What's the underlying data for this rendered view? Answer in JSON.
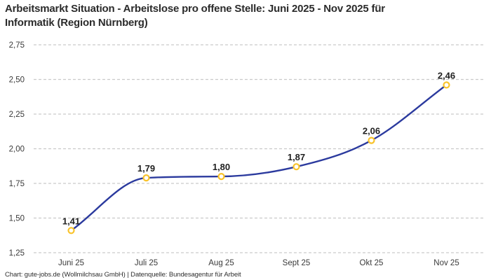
{
  "header": {
    "title_lines": [
      "Arbeitsmarkt Situation - Arbeitslose pro offene Stelle: Juni 2025 - Nov 2025 für",
      "Informatik (Region Nürnberg)"
    ]
  },
  "chart_data": {
    "type": "line",
    "title": "Arbeitsmarkt Situation - Arbeitslose pro offene Stelle: Juni 2025 - Nov 2025 für Informatik (Region Nürnberg)",
    "categories": [
      "Juni 25",
      "Juli 25",
      "Aug 25",
      "Sept 25",
      "Okt 25",
      "Nov 25"
    ],
    "values": [
      1.41,
      1.79,
      1.8,
      1.87,
      2.06,
      2.46
    ],
    "point_labels": [
      "1,41",
      "1,79",
      "1,80",
      "1,87",
      "2,06",
      "2,46"
    ],
    "xlabel": "",
    "ylabel": "",
    "ylim": [
      1.25,
      2.75
    ],
    "y_ticks": [
      2.75,
      2.5,
      2.25,
      2.0,
      1.75,
      1.5,
      1.25
    ],
    "y_tick_labels": [
      "2,75",
      "2,50",
      "2,25",
      "2,00",
      "1,75",
      "1,50",
      "1,25"
    ],
    "grid": "horizontal-dashed",
    "legend": "none",
    "colors": {
      "line": "#2b3a9e",
      "marker_ring": "#f9c32b",
      "marker_fill": "#ffffff",
      "grid": "#c9c9c9",
      "tick_text": "#3a3a3a",
      "point_label_text": "#1f1f1f"
    }
  },
  "footer": {
    "text": "Chart: gute-jobs.de (Wollmilchsau GmbH) | Datenquelle: Bundesagentur für Arbeit"
  }
}
